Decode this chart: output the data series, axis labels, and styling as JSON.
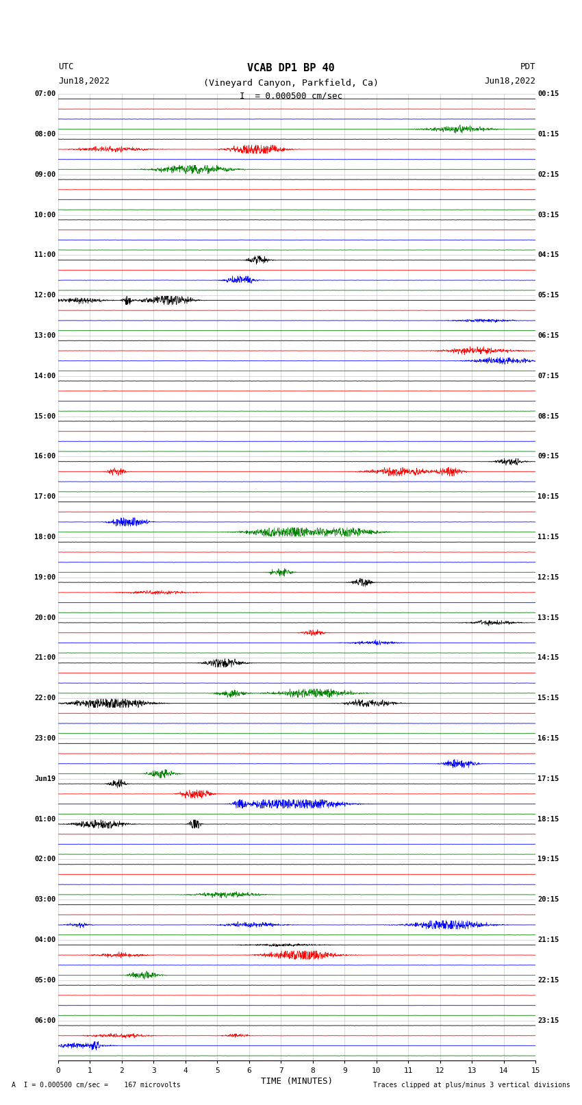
{
  "title_line1": "VCAB DP1 BP 40",
  "title_line2": "(Vineyard Canyon, Parkfield, Ca)",
  "scale_text": "I  = 0.000500 cm/sec",
  "left_header_line1": "UTC",
  "left_header_line2": "Jun18,2022",
  "right_header_line1": "PDT",
  "right_header_line2": "Jun18,2022",
  "xlabel": "TIME (MINUTES)",
  "footer_left": "A  I = 0.000500 cm/sec =    167 microvolts",
  "footer_right": "Traces clipped at plus/minus 3 vertical divisions",
  "xmin": 0,
  "xmax": 15,
  "colors": [
    "black",
    "red",
    "blue",
    "green"
  ],
  "utc_labels": [
    "07:00",
    "",
    "",
    "",
    "08:00",
    "",
    "",
    "",
    "09:00",
    "",
    "",
    "",
    "10:00",
    "",
    "",
    "",
    "11:00",
    "",
    "",
    "",
    "12:00",
    "",
    "",
    "",
    "13:00",
    "",
    "",
    "",
    "14:00",
    "",
    "",
    "",
    "15:00",
    "",
    "",
    "",
    "16:00",
    "",
    "",
    "",
    "17:00",
    "",
    "",
    "",
    "18:00",
    "",
    "",
    "",
    "19:00",
    "",
    "",
    "",
    "20:00",
    "",
    "",
    "",
    "21:00",
    "",
    "",
    "",
    "22:00",
    "",
    "",
    "",
    "23:00",
    "",
    "",
    "",
    "Jun19",
    "",
    "",
    "",
    "01:00",
    "",
    "",
    "",
    "02:00",
    "",
    "",
    "",
    "03:00",
    "",
    "",
    "",
    "04:00",
    "",
    "",
    "",
    "05:00",
    "",
    "",
    "",
    "06:00",
    "",
    "",
    ""
  ],
  "pdt_labels": [
    "00:15",
    "",
    "",
    "",
    "01:15",
    "",
    "",
    "",
    "02:15",
    "",
    "",
    "",
    "03:15",
    "",
    "",
    "",
    "04:15",
    "",
    "",
    "",
    "05:15",
    "",
    "",
    "",
    "06:15",
    "",
    "",
    "",
    "07:15",
    "",
    "",
    "",
    "08:15",
    "",
    "",
    "",
    "09:15",
    "",
    "",
    "",
    "10:15",
    "",
    "",
    "",
    "11:15",
    "",
    "",
    "",
    "12:15",
    "",
    "",
    "",
    "13:15",
    "",
    "",
    "",
    "14:15",
    "",
    "",
    "",
    "15:15",
    "",
    "",
    "",
    "16:15",
    "",
    "",
    "",
    "17:15",
    "",
    "",
    "",
    "18:15",
    "",
    "",
    "",
    "19:15",
    "",
    "",
    "",
    "20:15",
    "",
    "",
    "",
    "21:15",
    "",
    "",
    "",
    "22:15",
    "",
    "",
    "",
    "23:15",
    "",
    "",
    ""
  ],
  "n_hour_rows": 24,
  "traces_per_hour": 4,
  "fig_width": 8.5,
  "fig_height": 16.13,
  "bg_color": "white",
  "grid_color": "#bbbbbb",
  "xticks": [
    0,
    1,
    2,
    3,
    4,
    5,
    6,
    7,
    8,
    9,
    10,
    11,
    12,
    13,
    14,
    15
  ]
}
